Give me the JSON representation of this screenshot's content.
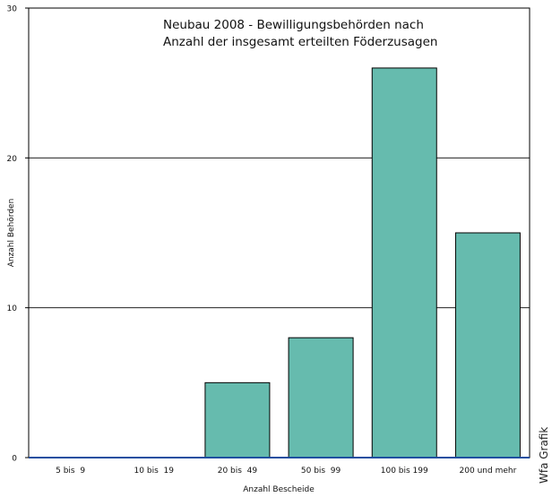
{
  "chart_data": {
    "type": "bar",
    "title_lines": [
      "Neubau 2008 - Bewilligungsbehörden nach",
      "Anzahl der insgesamt erteilten Föderzusagen"
    ],
    "xlabel": "Anzahl Bescheide",
    "ylabel": "Anzahl Behörden",
    "categories": [
      "5 bis  9",
      "10 bis  19",
      "20 bis  49",
      "50 bis  99",
      "100 bis 199",
      "200 und mehr"
    ],
    "values": [
      0,
      0,
      5,
      8,
      26,
      15
    ],
    "ylim": [
      0,
      30
    ],
    "yticks": [
      0,
      10,
      20,
      30
    ],
    "grid": true,
    "legend": "none"
  },
  "colors": {
    "bar": "#66bbae",
    "bar_border": "#000000",
    "baseline": "#1f4fa0",
    "grid": "#000000"
  },
  "credit": "Wfa Grafik"
}
